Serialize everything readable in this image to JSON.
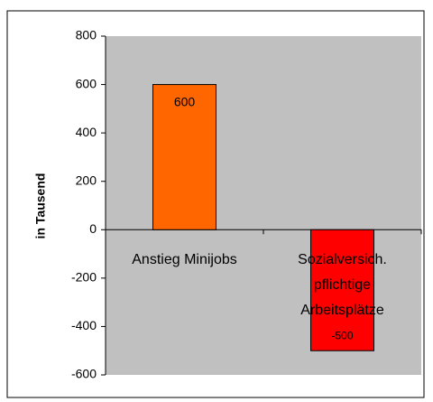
{
  "chart_data": {
    "type": "bar",
    "categories": [
      "Anstieg Minijobs",
      "Sozialversich. pflichtige Arbeitsplätze"
    ],
    "values": [
      600,
      -500
    ],
    "colors": [
      "#ff6600",
      "#ff0000"
    ],
    "y_label": "in Tausend",
    "ylim": [
      -600,
      800
    ],
    "yticks": [
      -600,
      -400,
      -200,
      0,
      200,
      400,
      600,
      800
    ],
    "grid": false
  }
}
